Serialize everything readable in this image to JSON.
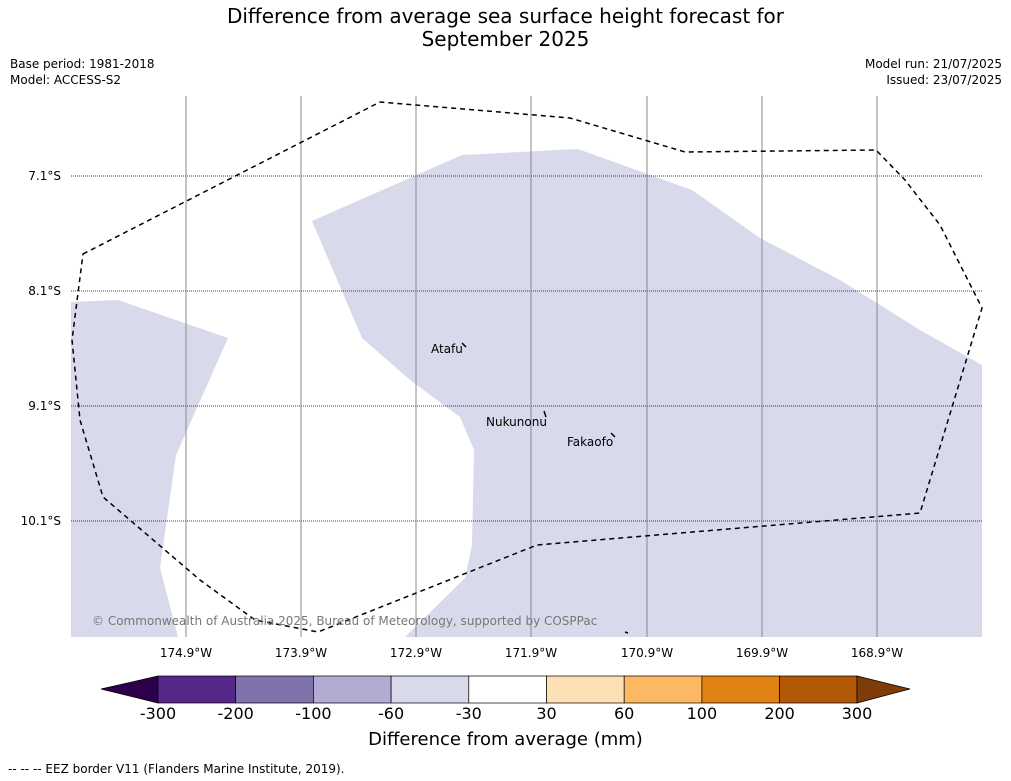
{
  "title_line1": "Difference from average sea surface height forecast for",
  "title_line2": "September 2025",
  "base_period": "Base period: 1981-2018",
  "model": "Model: ACCESS-S2",
  "model_run": "Model run: 21/07/2025",
  "issued": "Issued: 23/07/2025",
  "lat_labels": [
    "7.1°S",
    "8.1°S",
    "9.1°S",
    "10.1°S"
  ],
  "lon_labels": [
    "174.9°W",
    "173.9°W",
    "172.9°W",
    "171.9°W",
    "170.9°W",
    "169.9°W",
    "168.9°W"
  ],
  "islands": [
    "Atafu",
    "Nukunonu",
    "Fakaofo"
  ],
  "copyright": "© Commonwealth of Australia 2025, Bureau of Meteorology, supported by COSPPac",
  "colorbar": {
    "ticks": [
      "-300",
      "-200",
      "-100",
      "-60",
      "-30",
      "30",
      "60",
      "100",
      "200",
      "300"
    ],
    "colors": [
      "#2d004b",
      "#542788",
      "#8073ac",
      "#b2abd2",
      "#d8daeb",
      "#ffffff",
      "#fee0b6",
      "#fdb863",
      "#e08214",
      "#b35806",
      "#7f3b08"
    ],
    "label": "Difference from average (mm)"
  },
  "legend_eez": "-- -- -- EEZ border V11 (Flanders Marine Institute, 2019)."
}
